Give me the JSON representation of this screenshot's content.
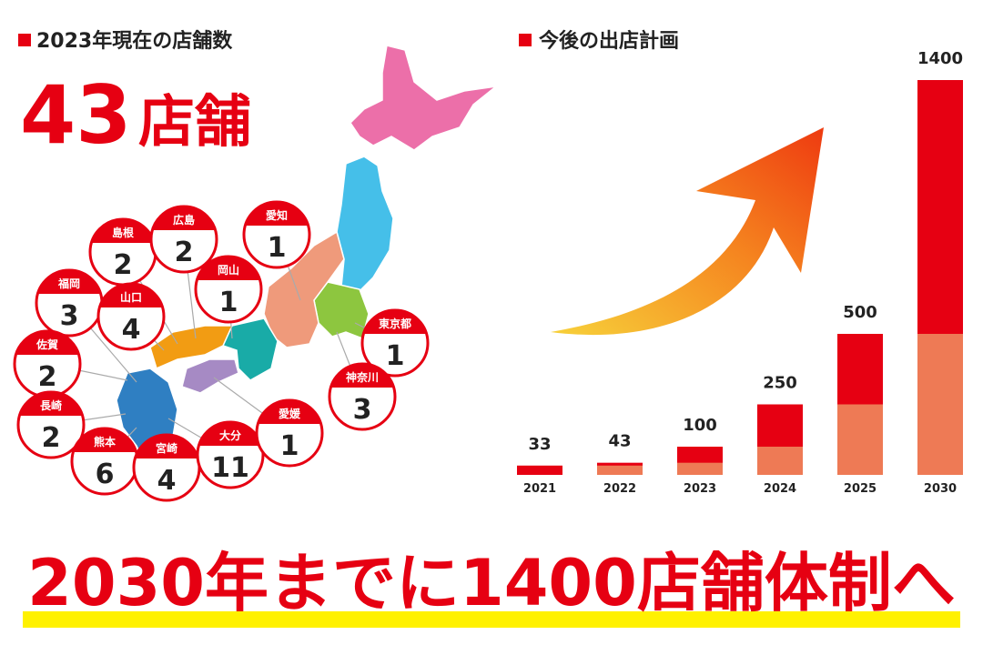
{
  "current": {
    "title": "2023年現在の店舗数",
    "total": 43,
    "unit": "店舗"
  },
  "prefectures": [
    {
      "name": "福岡",
      "count": 3
    },
    {
      "name": "島根",
      "count": 2
    },
    {
      "name": "広島",
      "count": 2
    },
    {
      "name": "愛知",
      "count": 1
    },
    {
      "name": "岡山",
      "count": 1
    },
    {
      "name": "山口",
      "count": 4
    },
    {
      "name": "佐賀",
      "count": 2
    },
    {
      "name": "長崎",
      "count": 2
    },
    {
      "name": "熊本",
      "count": 6
    },
    {
      "name": "宮崎",
      "count": 4
    },
    {
      "name": "大分",
      "count": 11
    },
    {
      "name": "愛媛",
      "count": 1
    },
    {
      "name": "東京都",
      "count": 1
    },
    {
      "name": "神奈川",
      "count": 3
    }
  ],
  "chart_data": {
    "type": "bar",
    "title": "今後の出店計画",
    "categories": [
      "2021",
      "2022",
      "2023",
      "2024",
      "2025",
      "2030"
    ],
    "values": [
      33,
      43,
      100,
      250,
      500,
      1400
    ],
    "color": "#e60012",
    "previous_color": "#ee7a55",
    "ylim": [
      0,
      1400
    ]
  },
  "headline": "2030年までに1400店舗体制へ"
}
